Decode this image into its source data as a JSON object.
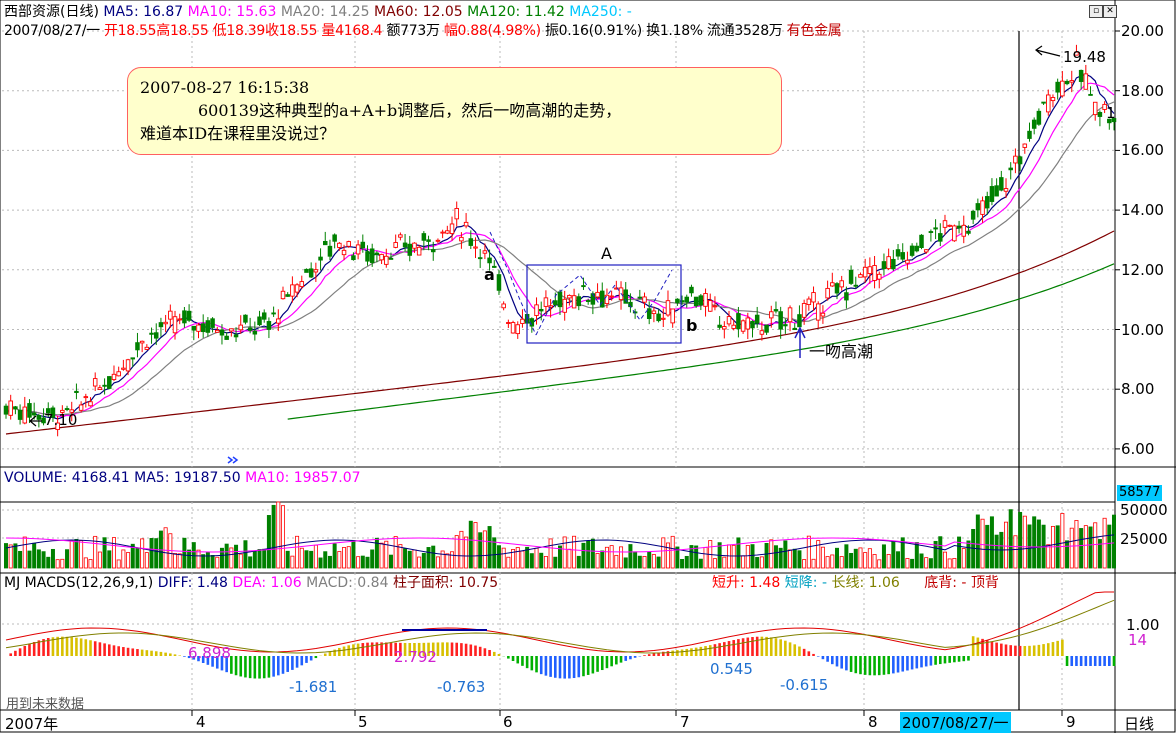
{
  "colors": {
    "up": "#ff0000",
    "down": "#008000",
    "ma5": "#000080",
    "ma10": "#ff00ff",
    "ma20": "#808080",
    "ma60": "#800000",
    "ma120": "#008000",
    "ma250": "#00c8ff",
    "axis_highlight": "#00c8ff"
  },
  "header": {
    "stock": "西部资源(日线)",
    "ma5": "MA5: 16.87",
    "ma10": "MA10: 15.63",
    "ma20": "MA20: 14.25",
    "ma60": "MA60: 12.05",
    "ma120": "MA120: 11.42",
    "ma250": "MA250: -",
    "date": "2007/08/27/一",
    "open": "开18.55",
    "high": "高18.55",
    "low": "低18.39",
    "close": "收18.55",
    "vol": "量4168.4",
    "amount": "额773万",
    "range": "幅0.88(4.98%)",
    "amp": "振0.16(0.91%)",
    "turnover": "换1.18%",
    "float": "流通3528万",
    "sector": "有色金属"
  },
  "window_buttons": [
    "minimize-icon",
    "close-icon"
  ],
  "note": {
    "line1": "2007-08-27 16:15:38",
    "line2": "600139这种典型的a+A+b调整后，然后一吻高潮的走势，",
    "line3": "难道本ID在课程里没说过？"
  },
  "annotations": {
    "a": "a",
    "A": "A",
    "b": "b",
    "kiss": "一吻高潮",
    "low": "7.10",
    "high": "19.48",
    "cut": "1"
  },
  "price_axis": [
    "20.00",
    "18.00",
    "16.00",
    "14.00",
    "12.00",
    "10.00",
    "8.00",
    "6.00"
  ],
  "volume": {
    "label": "VOLUME: 4168.41",
    "ma5": "MA5: 19187.50",
    "ma10": "MA10: 19857.07",
    "badge": "58577",
    "axis": [
      "50000",
      "25000"
    ]
  },
  "macd": {
    "label": "MJ  MACDS(12,26,9,1)",
    "diff": "DIFF: 1.48",
    "dea": "DEA: 1.06",
    "macd": "MACD: 0.84",
    "area": "柱子面积: 10.75",
    "short_up": "短升: 1.48",
    "short_down": "短降: -",
    "long": "长线: 1.06",
    "bottom": "底背: -",
    "top": "顶背",
    "values": [
      "6.898",
      "-1.681",
      "2.792",
      "-0.763",
      "0.545",
      "-0.615",
      "14"
    ],
    "axis": [
      "1.00"
    ],
    "note": "用到未来数据"
  },
  "time_axis": {
    "labels": [
      "2007年",
      "4",
      "5",
      "6",
      "7",
      "8",
      "9"
    ],
    "cursor": "2007/08/27/一",
    "period": "日线"
  }
}
